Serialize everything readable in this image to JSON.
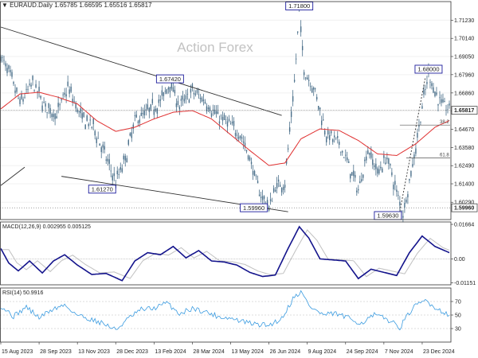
{
  "chart_data": {
    "type": "candlestick",
    "header": {
      "symbol": "EURAUD.Daily",
      "ohlc": "1.65785 1.66595 1.65516 1.65817"
    },
    "watermark": "Action Forex",
    "price_axis": {
      "ylim": [
        1.5925,
        1.7235
      ],
      "ticks": [
        "1.71230",
        "1.69050",
        "1.66860",
        "1.64670",
        "1.62490",
        "1.60290"
      ],
      "tick_values": [
        1.7123,
        1.6905,
        1.6686,
        1.6467,
        1.6249,
        1.6029
      ],
      "mid_ticks": [
        "1.70140",
        "1.67960",
        "1.65770",
        "1.63580",
        "1.61400"
      ],
      "mid_tick_values": [
        1.7014,
        1.6796,
        1.6577,
        1.6358,
        1.614
      ],
      "current": "1.65817",
      "current_value": 1.65817,
      "low_mark": "1.59960",
      "low_mark_value": 1.5996
    },
    "x_labels": [
      "15 Aug 2023",
      "28 Sep 2023",
      "13 Nov 2023",
      "28 Dec 2023",
      "13 Feb 2024",
      "28 Mar 2024",
      "13 May 2024",
      "26 Jun 2024",
      "9 Aug 2024",
      "24 Sep 2024",
      "7 Nov 2024",
      "23 Dec 2024"
    ],
    "price_path": [
      [
        0,
        1.6905
      ],
      [
        6,
        1.6785
      ],
      [
        12,
        1.6625
      ],
      [
        20,
        1.6745
      ],
      [
        28,
        1.66
      ],
      [
        35,
        1.6555
      ],
      [
        42,
        1.672
      ],
      [
        50,
        1.6545
      ],
      [
        58,
        1.648
      ],
      [
        66,
        1.6295
      ],
      [
        72,
        1.615
      ],
      [
        78,
        1.6285
      ],
      [
        84,
        1.652
      ],
      [
        92,
        1.6575
      ],
      [
        100,
        1.6635
      ],
      [
        106,
        1.6745
      ],
      [
        112,
        1.6605
      ],
      [
        120,
        1.6695
      ],
      [
        128,
        1.664
      ],
      [
        134,
        1.656
      ],
      [
        142,
        1.6505
      ],
      [
        150,
        1.644
      ],
      [
        156,
        1.629
      ],
      [
        162,
        1.609
      ],
      [
        168,
        1.5996
      ],
      [
        172,
        1.612
      ],
      [
        178,
        1.615
      ],
      [
        184,
        1.675
      ],
      [
        187,
        1.718
      ],
      [
        190,
        1.682
      ],
      [
        196,
        1.672
      ],
      [
        204,
        1.644
      ],
      [
        212,
        1.638
      ],
      [
        218,
        1.625
      ],
      [
        224,
        1.61
      ],
      [
        230,
        1.635
      ],
      [
        236,
        1.621
      ],
      [
        242,
        1.63
      ],
      [
        248,
        1.609
      ],
      [
        252,
        1.5963
      ],
      [
        258,
        1.625
      ],
      [
        264,
        1.66
      ],
      [
        268,
        1.68
      ],
      [
        274,
        1.6645
      ],
      [
        281,
        1.6582
      ]
    ],
    "sma": [
      [
        0,
        1.659
      ],
      [
        12,
        1.668
      ],
      [
        24,
        1.669
      ],
      [
        36,
        1.666
      ],
      [
        48,
        1.662
      ],
      [
        60,
        1.652
      ],
      [
        72,
        1.6455
      ],
      [
        84,
        1.648
      ],
      [
        96,
        1.653
      ],
      [
        108,
        1.657
      ],
      [
        120,
        1.658
      ],
      [
        132,
        1.653
      ],
      [
        144,
        1.6435
      ],
      [
        156,
        1.634
      ],
      [
        168,
        1.625
      ],
      [
        178,
        1.6265
      ],
      [
        188,
        1.641
      ],
      [
        200,
        1.647
      ],
      [
        212,
        1.646
      ],
      [
        224,
        1.64
      ],
      [
        236,
        1.632
      ],
      [
        248,
        1.631
      ],
      [
        260,
        1.638
      ],
      [
        272,
        1.648
      ],
      [
        281,
        1.652
      ]
    ],
    "trendlines": [
      {
        "name": "upper-channel",
        "points": [
          [
            0,
            1.7082
          ],
          [
            176,
            1.6551
          ]
        ]
      },
      {
        "name": "lower-channel",
        "points": [
          [
            38,
            1.6185
          ],
          [
            180,
            1.5972
          ]
        ]
      },
      {
        "name": "rise-line",
        "points": [
          [
            250,
            1.5975
          ],
          [
            266,
            1.678
          ]
        ]
      },
      {
        "name": "left-stub",
        "points": [
          [
            0,
            1.613
          ],
          [
            15,
            1.624
          ]
        ]
      }
    ],
    "callouts": [
      {
        "label": "1.71800",
        "x": 187,
        "y": 1.718
      },
      {
        "label": "1.67420",
        "x": 106,
        "y": 1.6742
      },
      {
        "label": "1.61270",
        "x": 72,
        "y": 1.6127
      },
      {
        "label": "1.59960",
        "x": 168,
        "y": 1.5996
      },
      {
        "label": "1.68000",
        "x": 268,
        "y": 1.68
      },
      {
        "label": "1.59630",
        "x": 252,
        "y": 1.5963
      }
    ],
    "fib_levels": [
      {
        "label": "38.2",
        "value": 1.6493,
        "x_from": 250
      },
      {
        "label": "61.8",
        "value": 1.6296,
        "x_from": 254
      }
    ],
    "macd": {
      "title": "MACD(12,26,9) 0.002955 0.005125",
      "ticks": [
        "0.01664",
        "0.00",
        "-0.01151"
      ],
      "tick_values": [
        0.01664,
        0.0,
        -0.01151
      ],
      "ylim": [
        -0.0125,
        0.0178
      ],
      "values": [
        [
          0,
          0.005
        ],
        [
          5,
          -0.002
        ],
        [
          11,
          -0.0058
        ],
        [
          18,
          -0.001
        ],
        [
          26,
          -0.0068
        ],
        [
          33,
          -0.001
        ],
        [
          40,
          0.002
        ],
        [
          48,
          -0.003
        ],
        [
          57,
          -0.0075
        ],
        [
          66,
          -0.007
        ],
        [
          76,
          -0.0105
        ],
        [
          84,
          -0.001
        ],
        [
          92,
          0.003
        ],
        [
          100,
          0.002
        ],
        [
          108,
          0.006
        ],
        [
          116,
          0.0005
        ],
        [
          124,
          0.004
        ],
        [
          132,
          -0.001
        ],
        [
          140,
          -0.0015
        ],
        [
          148,
          -0.003
        ],
        [
          156,
          -0.0065
        ],
        [
          164,
          -0.0085
        ],
        [
          172,
          -0.0078
        ],
        [
          180,
          0.005
        ],
        [
          187,
          0.0155
        ],
        [
          193,
          0.01
        ],
        [
          200,
          0.0
        ],
        [
          208,
          -0.0005
        ],
        [
          216,
          -0.001
        ],
        [
          224,
          -0.0095
        ],
        [
          232,
          -0.005
        ],
        [
          240,
          -0.0065
        ],
        [
          248,
          -0.008
        ],
        [
          256,
          0.003
        ],
        [
          264,
          0.011
        ],
        [
          272,
          0.006
        ],
        [
          281,
          0.003
        ]
      ]
    },
    "rsi": {
      "title": "RSI(14) 50.9916",
      "ticks": [
        "70",
        "50",
        "30"
      ],
      "tick_values": [
        70,
        50,
        30
      ],
      "ylim": [
        10,
        90
      ],
      "values": [
        [
          0,
          64
        ],
        [
          8,
          48
        ],
        [
          16,
          62
        ],
        [
          24,
          46
        ],
        [
          32,
          58
        ],
        [
          40,
          65
        ],
        [
          48,
          50
        ],
        [
          56,
          44
        ],
        [
          64,
          38
        ],
        [
          72,
          28
        ],
        [
          80,
          45
        ],
        [
          88,
          58
        ],
        [
          96,
          60
        ],
        [
          104,
          68
        ],
        [
          112,
          52
        ],
        [
          120,
          60
        ],
        [
          128,
          55
        ],
        [
          136,
          48
        ],
        [
          144,
          45
        ],
        [
          152,
          40
        ],
        [
          160,
          36
        ],
        [
          168,
          35
        ],
        [
          176,
          45
        ],
        [
          184,
          78
        ],
        [
          188,
          84
        ],
        [
          194,
          62
        ],
        [
          202,
          50
        ],
        [
          210,
          52
        ],
        [
          218,
          45
        ],
        [
          226,
          38
        ],
        [
          234,
          50
        ],
        [
          242,
          44
        ],
        [
          250,
          32
        ],
        [
          258,
          60
        ],
        [
          266,
          72
        ],
        [
          274,
          58
        ],
        [
          281,
          51
        ]
      ]
    }
  },
  "colors": {
    "candle": "#4a6f8a",
    "sma": "#e03030",
    "trend": "#303030",
    "macd_main": "#14148c",
    "macd_signal": "#c0c0c0",
    "rsi": "#3a9be0"
  }
}
